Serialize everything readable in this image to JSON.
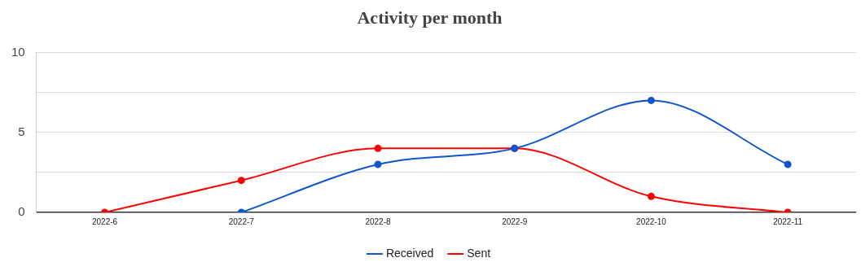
{
  "chart_data": {
    "type": "line",
    "title": "Activity per month",
    "categories": [
      "2022-6",
      "2022-7",
      "2022-8",
      "2022-9",
      "2022-10",
      "2022-11"
    ],
    "series": [
      {
        "name": "Sent",
        "color": "#ff0000",
        "values": [
          0,
          2,
          4,
          4,
          1,
          0
        ]
      },
      {
        "name": "Received",
        "color": "#1155cc",
        "values": [
          null,
          0,
          3,
          4,
          7,
          3
        ]
      }
    ],
    "ylim": [
      0,
      10
    ],
    "yticks": [
      0,
      {
        "value": 2.5,
        "label": null
      },
      5,
      {
        "value": 7.5,
        "label": null
      },
      10
    ],
    "grid": "y",
    "legend": "bottom",
    "marker": "circle",
    "line_style": "solid"
  }
}
